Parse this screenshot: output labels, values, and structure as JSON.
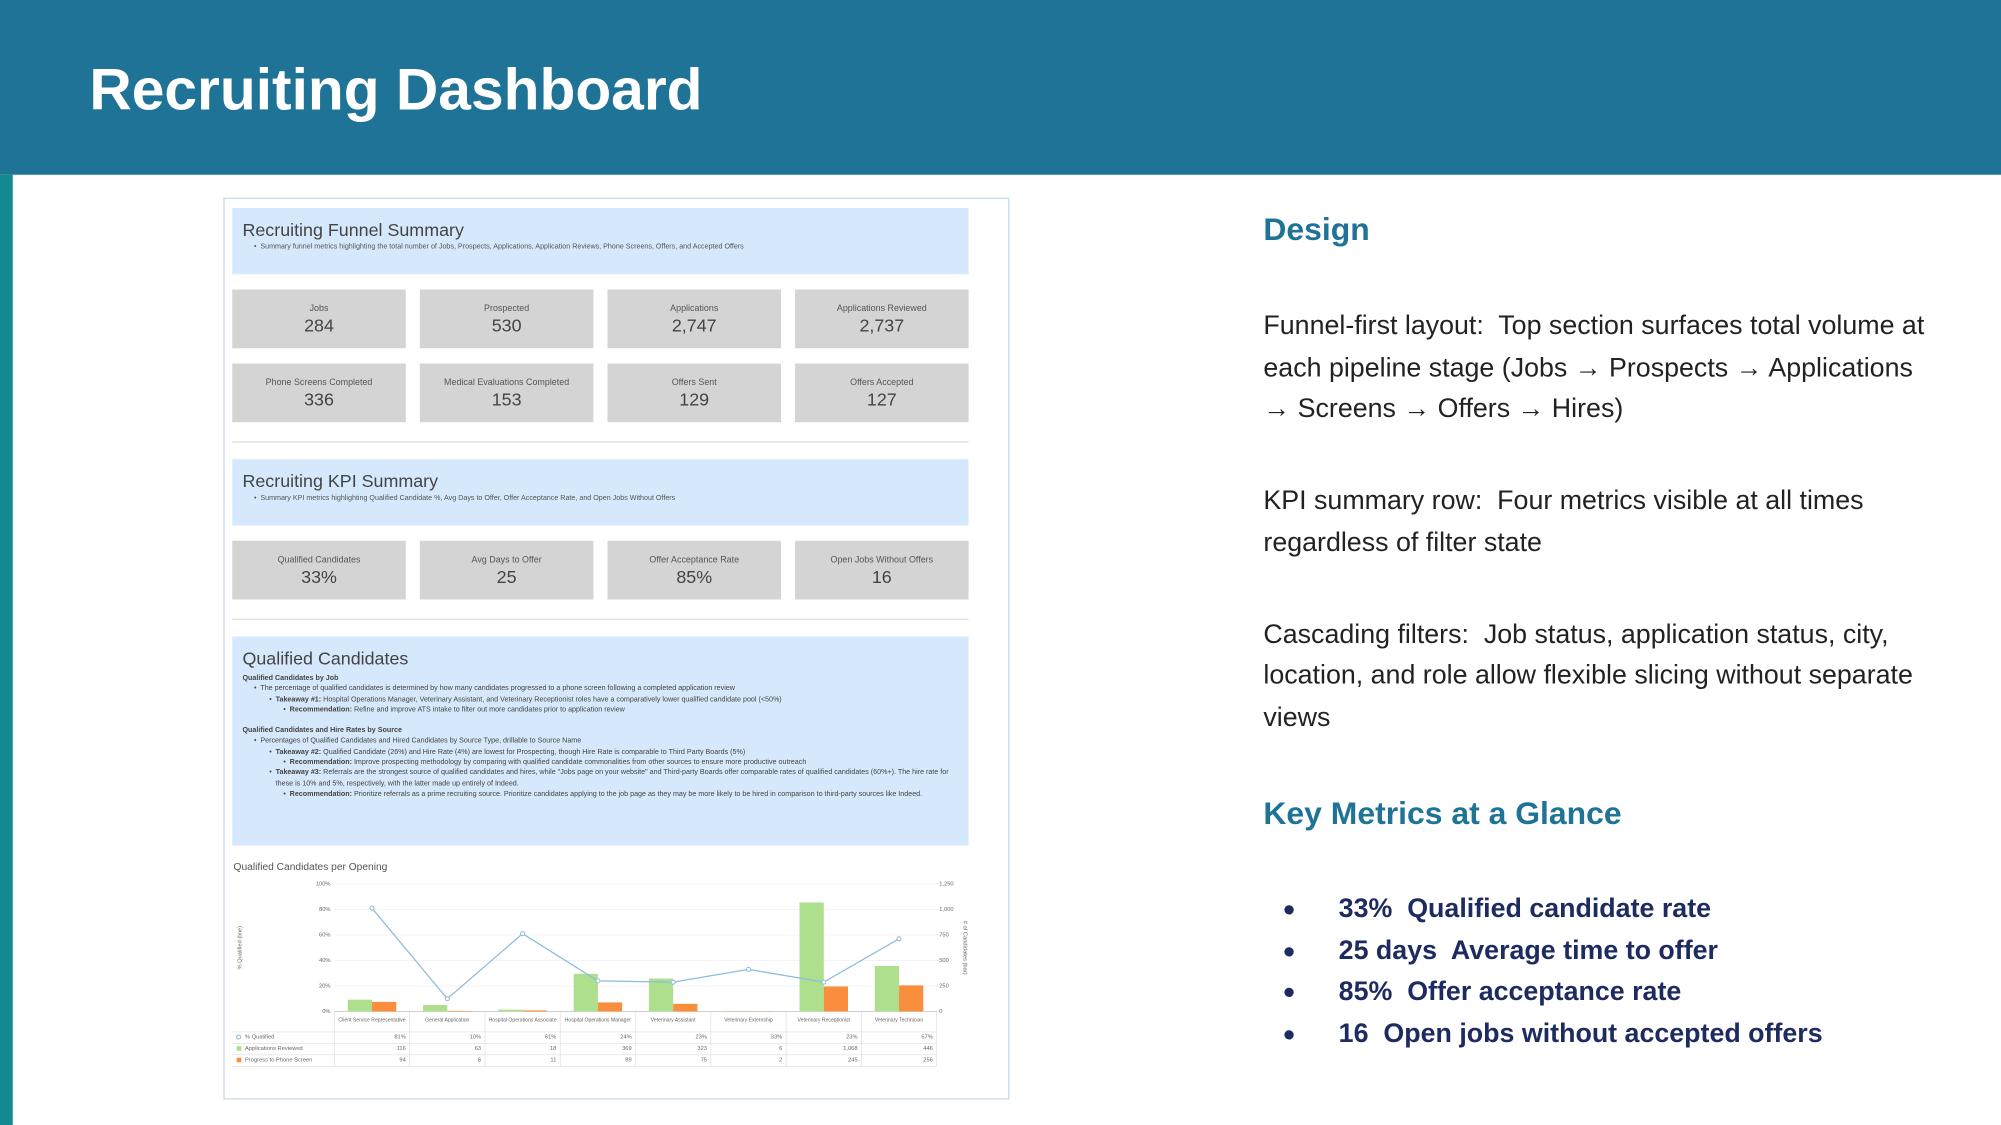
{
  "header": {
    "title": "Recruiting Dashboard"
  },
  "dashboard": {
    "funnel": {
      "title": "Recruiting Funnel Summary",
      "subtitle": "Summary funnel metrics highlighting the total number of Jobs, Prospects, Applications, Application Reviews, Phone Screens, Offers, and Accepted Offers",
      "cards": [
        {
          "label": "Jobs",
          "value": "284"
        },
        {
          "label": "Prospected",
          "value": "530"
        },
        {
          "label": "Applications",
          "value": "2,747"
        },
        {
          "label": "Applications Reviewed",
          "value": "2,737"
        },
        {
          "label": "Phone Screens Completed",
          "value": "336"
        },
        {
          "label": "Medical Evaluations Completed",
          "value": "153"
        },
        {
          "label": "Offers Sent",
          "value": "129"
        },
        {
          "label": "Offers Accepted",
          "value": "127"
        }
      ]
    },
    "kpi": {
      "title": "Recruiting KPI Summary",
      "subtitle": "Summary KPI metrics highlighting Qualified Candidate %, Avg Days to Offer, Offer Acceptance Rate, and Open Jobs Without Offers",
      "cards": [
        {
          "label": "Qualified Candidates",
          "value": "33%"
        },
        {
          "label": "Avg Days to Offer",
          "value": "25"
        },
        {
          "label": "Offer Acceptance Rate",
          "value": "85%"
        },
        {
          "label": "Open Jobs Without Offers",
          "value": "16"
        }
      ]
    },
    "qualified": {
      "title": "Qualified Candidates",
      "sections": [
        {
          "heading": "Qualified Candidates by Job",
          "summary": "The percentage of qualified candidates is determined by how many candidates progressed to a phone screen following a completed application review",
          "takeaways": [
            {
              "lead": "Takeaway #1:",
              "text": "Hospital Operations Manager, Veterinary Assistant, and Veterinary Receptionist roles have a comparatively lower qualified candidate pool (<50%)",
              "rec_lead": "Recommendation:",
              "rec_text": "Refine and improve ATS intake to filter out more candidates prior to application review"
            }
          ]
        },
        {
          "heading": "Qualified Candidates and Hire Rates by Source",
          "summary": "Percentages of Qualified Candidates and Hired Candidates by Source Type, drillable to Source Name",
          "takeaways": [
            {
              "lead": "Takeaway #2:",
              "text": "Qualified Candidate (26%) and Hire Rate (4%) are lowest for Prospecting, though Hire Rate is comparable to Third Party Boards (5%)",
              "rec_lead": "Recommendation:",
              "rec_text": "Improve prospecting methodology by comparing with qualified candidate commonalities from other sources to ensure more productive outreach"
            },
            {
              "lead": "Takeaway #3:",
              "text": "Referrals are the strongest source of qualified candidates and hires, while \"Jobs page on your website\" and Third-party Boards offer comparable rates of qualified candidates (60%+). The hire rate for these is 10% and 5%, respectively, with the latter made up entirely of Indeed.",
              "rec_lead": "Recommendation:",
              "rec_text": "Prioritize referrals as a prime recruiting source. Prioritize candidates applying to the job page as they may be more likely to be hired in comparison to third-party sources like Indeed."
            }
          ]
        }
      ]
    },
    "chart_data": {
      "type": "combo",
      "title": "Qualified Candidates per Opening",
      "y_label": "% Qualified (line)",
      "y2_label": "# of Candidates (bar)",
      "categories": [
        "Client Service Representative",
        "General Application",
        "Hospital Operations Associate",
        "Hospital Operations Manager",
        "Veterinary Assistant",
        "Veterinary Externship",
        "Veterinary Receptionist",
        "Veterinary Technician"
      ],
      "series": [
        {
          "name": "% Qualified",
          "type": "line",
          "color": "#8dbcdc",
          "values": [
            81,
            10,
            61,
            24,
            23,
            33,
            23,
            57
          ],
          "value_labels": [
            "81%",
            "10%",
            "61%",
            "24%",
            "23%",
            "33%",
            "23%",
            "57%"
          ]
        },
        {
          "name": "Applications Reviewed",
          "type": "bar",
          "axis": "y2",
          "color": "#addf8c",
          "values": [
            116,
            63,
            18,
            369,
            323,
            6,
            1068,
            446
          ],
          "value_labels": [
            "116",
            "63",
            "18",
            "369",
            "323",
            "6",
            "1,068",
            "446"
          ]
        },
        {
          "name": "Progress to Phone Screen",
          "type": "bar",
          "axis": "y2",
          "color": "#f98e3c",
          "values": [
            94,
            6,
            11,
            89,
            75,
            2,
            245,
            256
          ]
        }
      ],
      "ylim": [
        0,
        100
      ],
      "yticks": [
        {
          "value": 0,
          "label": "0%"
        },
        {
          "value": 20,
          "label": "20%"
        },
        {
          "value": 40,
          "label": "40%"
        },
        {
          "value": 60,
          "label": "60%"
        },
        {
          "value": 80,
          "label": "80%"
        },
        {
          "value": 100,
          "label": "100%"
        }
      ],
      "y2lim": [
        0,
        1250
      ],
      "y2ticks": [
        0,
        250,
        500,
        750,
        {
          "value": 1000,
          "label": "1,000"
        },
        {
          "value": 1250,
          "label": "1,250"
        }
      ],
      "grid": true
    }
  },
  "design": {
    "heading": "Design",
    "items": [
      {
        "label": "Funnel-first layout:",
        "text": "Top section surfaces total volume at each pipeline stage (Jobs → Prospects → Applications → Screens → Offers → Hires)"
      },
      {
        "label": "KPI summary row:",
        "text": "Four metrics visible at all times regardless of filter state"
      },
      {
        "label": "Cascading filters:",
        "text": "Job status, application status, city, location, and role allow flexible slicing without separate views"
      }
    ]
  },
  "key_metrics": {
    "heading": "Key Metrics at a Glance",
    "items": [
      {
        "value": "33%",
        "text": "Qualified candidate rate"
      },
      {
        "value": "25 days",
        "text": "Average time to offer"
      },
      {
        "value": "85%",
        "text": "Offer acceptance rate"
      },
      {
        "value": "16",
        "text": "Open jobs without accepted offers"
      }
    ]
  }
}
